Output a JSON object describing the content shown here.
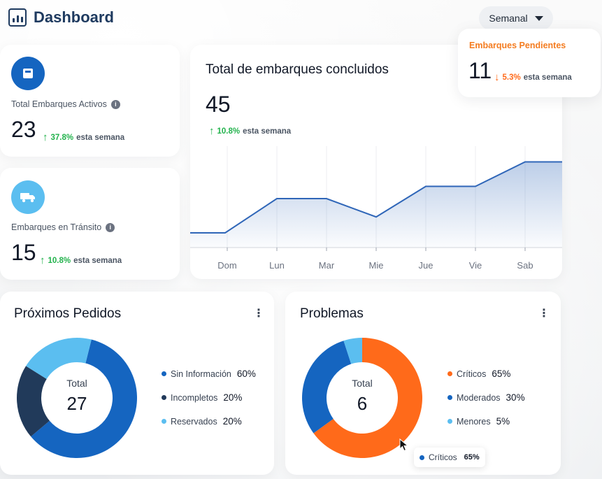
{
  "header": {
    "title": "Dashboard",
    "icon": "bar-chart-icon"
  },
  "period_select": {
    "value": "Semanal"
  },
  "colors": {
    "navy": "#1e3a5f",
    "primary_blue": "#1565c0",
    "light_blue": "#5bbef0",
    "dark_navy": "#213a5a",
    "orange": "#ff6a1a",
    "green": "#22b24c",
    "pending_title": "#f47c20"
  },
  "kpis": {
    "active": {
      "label": "Total Embarques Activos",
      "value": "23",
      "delta": "37.8%",
      "delta_text": "esta semana",
      "icon": "box-icon"
    },
    "transit": {
      "label": "Embarques en Tránsito",
      "value": "15",
      "delta": "10.8%",
      "delta_text": "esta semana",
      "icon": "truck-icon"
    },
    "pending": {
      "label": "Embarques Pendientes",
      "value": "11",
      "delta": "5.3%",
      "delta_text": "esta semana"
    }
  },
  "completed": {
    "title": "Total de embarques concluidos",
    "value": "45",
    "delta": "10.8%",
    "delta_text": "esta semana"
  },
  "chart_data": {
    "type": "area",
    "categories": [
      "Dom",
      "Lun",
      "Mar",
      "Mie",
      "Jue",
      "Vie",
      "Sab"
    ],
    "values": [
      1.2,
      4.0,
      4.0,
      2.5,
      5.0,
      5.0,
      7.0
    ],
    "ylim": [
      0,
      8
    ],
    "grid": "vertical",
    "color": "#2f66b8"
  },
  "orders": {
    "title": "Próximos Pedidos",
    "center_label": "Total",
    "center_value": "27",
    "segments": [
      {
        "name": "Sin Información",
        "value": 60,
        "value_label": "60%",
        "color": "#1565c0"
      },
      {
        "name": "Incompletos",
        "value": 20,
        "value_label": "20%",
        "color": "#213a5a"
      },
      {
        "name": "Reservados",
        "value": 20,
        "value_label": "20%",
        "color": "#5bbef0"
      }
    ]
  },
  "problems": {
    "title": "Problemas",
    "center_label": "Total",
    "center_value": "6",
    "segments": [
      {
        "name": "Críticos",
        "value": 65,
        "value_label": "65%",
        "color": "#ff6a1a"
      },
      {
        "name": "Moderados",
        "value": 30,
        "value_label": "30%",
        "color": "#1565c0"
      },
      {
        "name": "Menores",
        "value": 5,
        "value_label": "5%",
        "color": "#5bbef0"
      }
    ],
    "tooltip": {
      "label": "Críticos",
      "value": "65%"
    }
  }
}
